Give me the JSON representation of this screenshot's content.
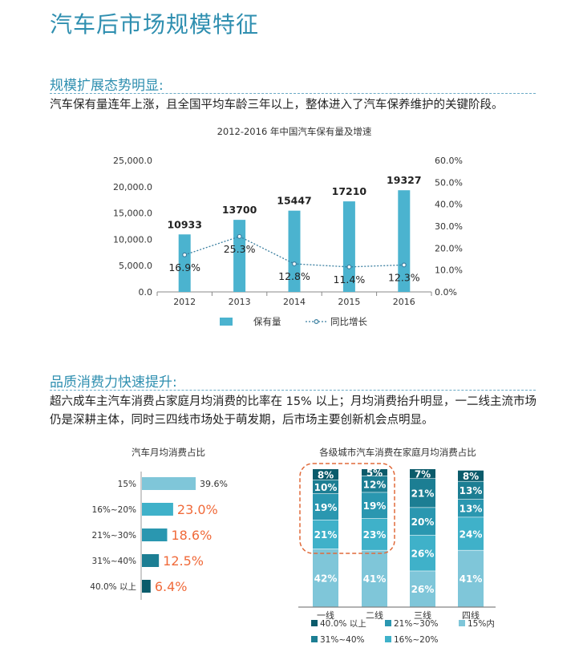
{
  "page": {
    "title": "汽车后市场规模特征",
    "section1": {
      "heading": "规模扩展态势明显:",
      "text": "汽车保有量连年上涨，且全国平均车龄三年以上，整体进入了汽车保养维护的关键阶段。"
    },
    "section2": {
      "heading": "品质消费力快速提升:",
      "text": "超六成车主汽车消费占家庭月均消费的比率在 15% 以上；月均消费抬升明显，一二线主流市场仍是深耕主体，同时三四线市场处于萌发期，后市场主要创新机会点明显。"
    }
  },
  "colors": {
    "accent": "#2f8fb0",
    "bar": "#4bb3cf",
    "line": "#3a7fa0",
    "highlight": "#f06a3a",
    "circle": "#e06a3a",
    "c40": "#0b5b6b",
    "c31": "#1c7e93",
    "c21": "#2a97b0",
    "c16": "#3fb1c9",
    "c15": "#7fc6d9"
  },
  "chart_data": [
    {
      "type": "bar",
      "title": "2012-2016 年中国汽车保有量及增速",
      "categories": [
        "2012",
        "2013",
        "2014",
        "2015",
        "2016"
      ],
      "series": [
        {
          "name": "保有量",
          "values": [
            10933,
            13700,
            15447,
            17210,
            19327
          ]
        },
        {
          "name": "同比增长",
          "values": [
            16.9,
            25.3,
            12.8,
            11.4,
            12.3
          ]
        }
      ],
      "bar_labels": [
        "10933",
        "13700",
        "15447",
        "17210",
        "19327"
      ],
      "line_labels": [
        "16.9%",
        "25.3%",
        "12.8%",
        "11.4%",
        "12.3%"
      ],
      "y_ticks": [
        "0.0",
        "5,000.0",
        "10,000.0",
        "15,000.0",
        "20,000.0",
        "25,000.0"
      ],
      "y2_ticks": [
        "0.0%",
        "10.0%",
        "20.0%",
        "30.0%",
        "40.0%",
        "50.0%",
        "60.0%"
      ],
      "ylim": [
        0,
        25000
      ],
      "y2lim": [
        0,
        60
      ],
      "legend_position": "bottom"
    },
    {
      "type": "bar",
      "title": "汽车月均消费占比",
      "orientation": "horizontal",
      "categories": [
        "15%",
        "16%~20%",
        "21%~30%",
        "31%~40%",
        "40.0% 以上"
      ],
      "values": [
        39.6,
        23.0,
        18.6,
        12.5,
        6.4
      ],
      "labels": [
        "39.6%",
        "23.0%",
        "18.6%",
        "12.5%",
        "6.4%"
      ]
    },
    {
      "type": "bar",
      "stacked": true,
      "title": "各级城市汽车消费在家庭月均消费占比",
      "categories": [
        "一线",
        "二线",
        "三线",
        "四线"
      ],
      "series": [
        {
          "name": "15%内",
          "values": [
            42,
            41,
            26,
            41
          ]
        },
        {
          "name": "16%~20%",
          "values": [
            21,
            23,
            26,
            24
          ]
        },
        {
          "name": "21%~30%",
          "values": [
            19,
            19,
            20,
            13
          ]
        },
        {
          "name": "31%~40%",
          "values": [
            10,
            12,
            21,
            13
          ]
        },
        {
          "name": "40.0% 以上",
          "values": [
            8,
            5,
            7,
            8
          ]
        }
      ],
      "legend": [
        "40.0% 以上",
        "21%~30%",
        "15%内",
        "31%~40%",
        "16%~20%"
      ],
      "legend_position": "bottom",
      "highlighted_categories": [
        "一线",
        "二线"
      ]
    }
  ]
}
